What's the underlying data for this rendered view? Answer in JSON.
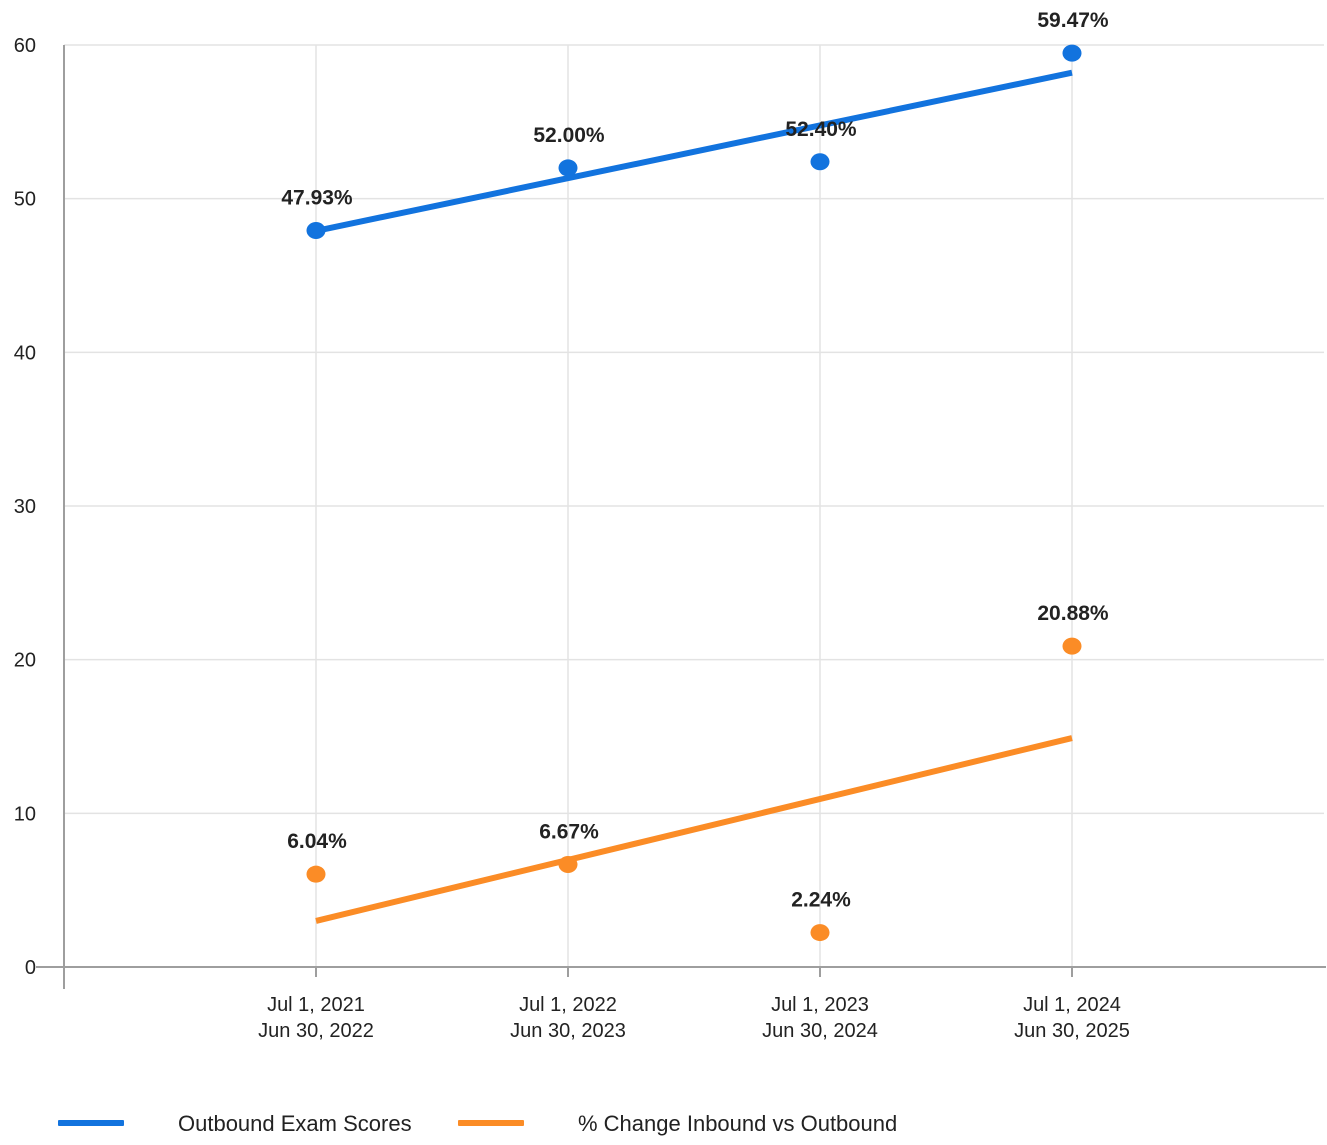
{
  "chart_data": {
    "type": "scatter",
    "categories": [
      [
        "Jul 1, 2021",
        "Jun 30, 2022"
      ],
      [
        "Jul 1, 2022",
        "Jun 30, 2023"
      ],
      [
        "Jul 1, 2023",
        "Jun 30, 2024"
      ],
      [
        "Jul 1, 2024",
        "Jun 30, 2025"
      ]
    ],
    "y_ticks": [
      "0",
      "10",
      "20",
      "30",
      "40",
      "50",
      "60"
    ],
    "ylim": [
      0,
      60
    ],
    "grid": true,
    "legend_position": "bottom-left",
    "series": [
      {
        "name": "Outbound Exam Scores",
        "color": "#1273de",
        "values": [
          47.93,
          52.0,
          52.4,
          59.47
        ],
        "labels": [
          "47.93%",
          "52.00%",
          "52.40%",
          "59.47%"
        ],
        "trendline": [
          47.9,
          58.2
        ]
      },
      {
        "name": "% Change Inbound vs Outbound",
        "color": "#fb8c26",
        "values": [
          6.04,
          6.67,
          2.24,
          20.88
        ],
        "labels": [
          "6.04%",
          "6.67%",
          "2.24%",
          "20.88%"
        ],
        "trendline": [
          3.0,
          14.9
        ]
      }
    ]
  }
}
